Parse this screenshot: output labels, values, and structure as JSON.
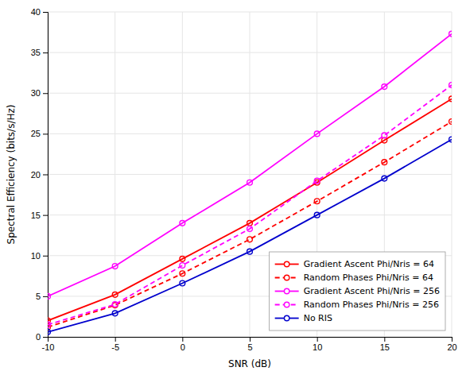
{
  "chart_data": {
    "type": "line",
    "x": [
      -10,
      -5,
      0,
      5,
      10,
      15,
      20
    ],
    "series": [
      {
        "name": "Gradient Ascent Phi/Nris = 64",
        "color": "#ff0000",
        "line_style": "solid",
        "marker": "circle",
        "values": [
          2.0,
          5.2,
          9.6,
          14.0,
          19.0,
          24.2,
          29.3
        ]
      },
      {
        "name": "Random Phases Phi/Nris = 64",
        "color": "#ff0000",
        "line_style": "dashed",
        "marker": "circle",
        "values": [
          1.2,
          3.9,
          7.8,
          12.0,
          16.7,
          21.5,
          26.5
        ]
      },
      {
        "name": "Gradient Ascent Phi/Nris = 256",
        "color": "#ff00ff",
        "line_style": "solid",
        "marker": "circle",
        "values": [
          5.0,
          8.7,
          14.0,
          19.0,
          25.0,
          30.8,
          37.3
        ]
      },
      {
        "name": "Random Phases Phi/Nris = 256",
        "color": "#ff00ff",
        "line_style": "dashed",
        "marker": "circle",
        "values": [
          1.5,
          4.0,
          8.8,
          13.3,
          19.2,
          24.8,
          31.0
        ]
      },
      {
        "name": "No RIS",
        "color": "#0000cd",
        "line_style": "solid",
        "marker": "circle",
        "values": [
          0.6,
          2.9,
          6.6,
          10.5,
          15.0,
          19.5,
          24.3
        ]
      }
    ],
    "xlabel": "SNR (dB)",
    "ylabel": "Spectral Efficiency (bits/s/Hz)",
    "xlim": [
      -10,
      20
    ],
    "ylim": [
      0,
      40
    ],
    "xticks": [
      -10,
      -5,
      0,
      5,
      10,
      15,
      20
    ],
    "yticks": [
      0,
      5,
      10,
      15,
      20,
      25,
      30,
      35,
      40
    ],
    "grid": true,
    "legend": "lower right"
  }
}
